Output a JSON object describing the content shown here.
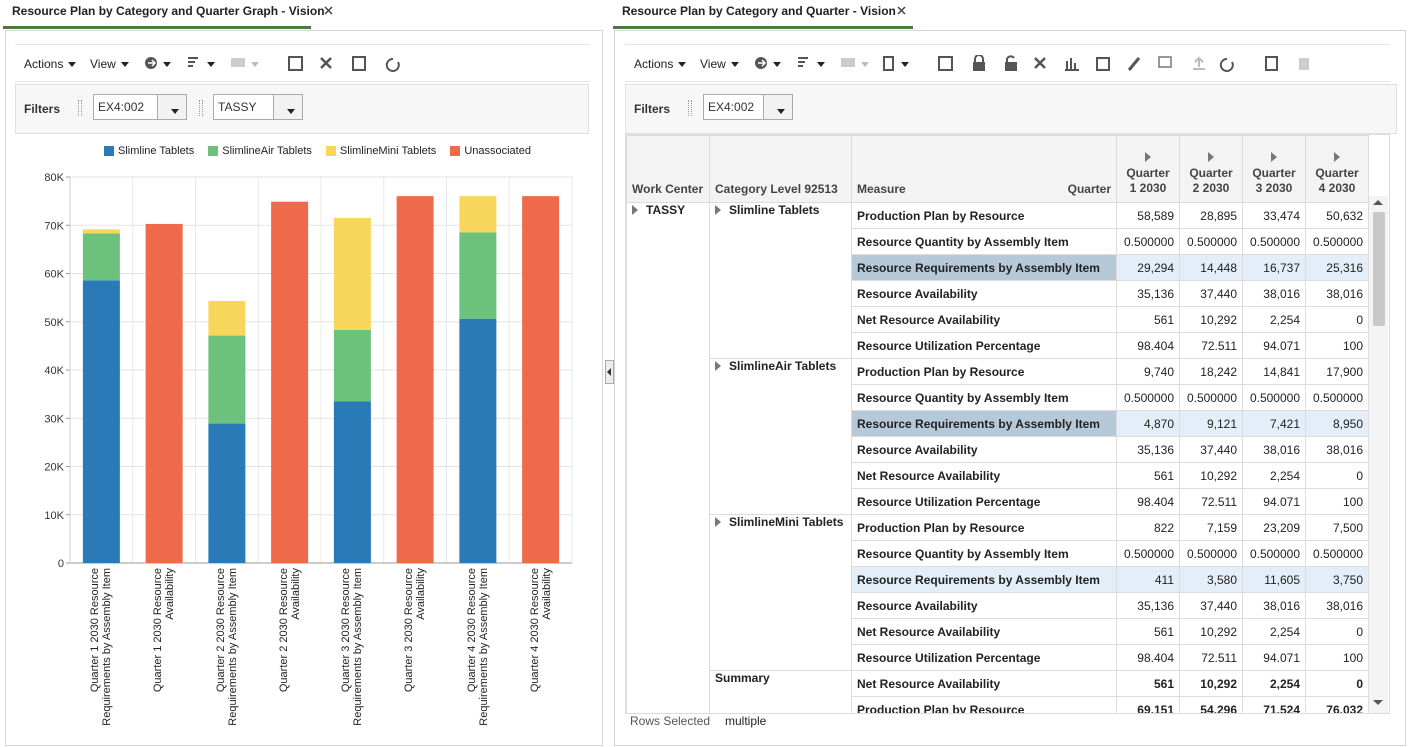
{
  "left_panel": {
    "tab_title": "Resource Plan by Category and Quarter Graph - Vision",
    "toolbar": {
      "actions": "Actions",
      "view": "View"
    },
    "filters": {
      "label": "Filters",
      "values": [
        "EX4:002",
        "TASSY"
      ]
    }
  },
  "chart_data": {
    "type": "bar",
    "stacked": true,
    "categories": [
      "Quarter 1 2030 Resource Requirements by Assembly Item",
      "Quarter 1 2030 Resource Availability",
      "Quarter 2 2030 Resource Requirements by Assembly Item",
      "Quarter 2 2030 Resource Availability",
      "Quarter 3 2030 Resource Requirements by Assembly Item",
      "Quarter 3 2030 Resource Availability",
      "Quarter 4 2030 Resource Requirements by Assembly Item",
      "Quarter 4 2030 Resource Availability"
    ],
    "series": [
      {
        "name": "Slimline Tablets",
        "color": "#2a7ab8",
        "values": [
          58589,
          null,
          28895,
          null,
          33474,
          null,
          50632,
          null
        ]
      },
      {
        "name": "SlimlineAir Tablets",
        "color": "#6cc17d",
        "values": [
          9740,
          null,
          18242,
          null,
          14841,
          null,
          17900,
          null
        ]
      },
      {
        "name": "SlimlineMini Tablets",
        "color": "#f8d55b",
        "values": [
          822,
          null,
          7159,
          null,
          23209,
          null,
          7500,
          null
        ]
      },
      {
        "name": "Unassociated",
        "color": "#ee6a4a",
        "values": [
          null,
          70272,
          null,
          74880,
          null,
          76032,
          null,
          76032
        ]
      }
    ],
    "ylim": [
      0,
      80000
    ],
    "yticks": [
      0,
      {
        "value": 10000,
        "label": "10K"
      },
      {
        "value": 20000,
        "label": "20K"
      },
      {
        "value": 30000,
        "label": "30K"
      },
      {
        "value": 40000,
        "label": "40K"
      },
      {
        "value": 50000,
        "label": "50K"
      },
      {
        "value": 60000,
        "label": "60K"
      },
      {
        "value": 70000,
        "label": "70K"
      },
      {
        "value": 80000,
        "label": "80K"
      }
    ],
    "grid": true,
    "legend": "top"
  },
  "right_panel": {
    "tab_title": "Resource Plan by Category and Quarter - Vision",
    "toolbar": {
      "actions": "Actions",
      "view": "View"
    },
    "filters": {
      "label": "Filters",
      "values": [
        "EX4:002"
      ]
    },
    "table": {
      "headers": {
        "work_center": "Work Center",
        "category": "Category Level 92513",
        "measure": "Measure",
        "quarter": "Quarter",
        "columns": [
          "Quarter 1 2030",
          "Quarter 2 2030",
          "Quarter 3 2030",
          "Quarter 4 2030"
        ]
      },
      "work_center": "TASSY",
      "groups": [
        {
          "category": "Slimline Tablets",
          "rows": [
            {
              "measure": "Production Plan by Resource",
              "values": [
                "58,589",
                "28,895",
                "33,474",
                "50,632"
              ]
            },
            {
              "measure": "Resource Quantity by Assembly Item",
              "values": [
                "0.500000",
                "0.500000",
                "0.500000",
                "0.500000"
              ]
            },
            {
              "measure": "Resource Requirements by Assembly Item",
              "values": [
                "29,294",
                "14,448",
                "16,737",
                "25,316"
              ]
            },
            {
              "measure": "Resource Availability",
              "values": [
                "35,136",
                "37,440",
                "38,016",
                "38,016"
              ]
            },
            {
              "measure": "Net Resource Availability",
              "values": [
                "561",
                "10,292",
                "2,254",
                "0"
              ]
            },
            {
              "measure": "Resource Utilization Percentage",
              "values": [
                "98.404",
                "72.511",
                "94.071",
                "100"
              ]
            }
          ]
        },
        {
          "category": "SlimlineAir Tablets",
          "rows": [
            {
              "measure": "Production Plan by Resource",
              "values": [
                "9,740",
                "18,242",
                "14,841",
                "17,900"
              ]
            },
            {
              "measure": "Resource Quantity by Assembly Item",
              "values": [
                "0.500000",
                "0.500000",
                "0.500000",
                "0.500000"
              ]
            },
            {
              "measure": "Resource Requirements by Assembly Item",
              "values": [
                "4,870",
                "9,121",
                "7,421",
                "8,950"
              ]
            },
            {
              "measure": "Resource Availability",
              "values": [
                "35,136",
                "37,440",
                "38,016",
                "38,016"
              ]
            },
            {
              "measure": "Net Resource Availability",
              "values": [
                "561",
                "10,292",
                "2,254",
                "0"
              ]
            },
            {
              "measure": "Resource Utilization Percentage",
              "values": [
                "98.404",
                "72.511",
                "94.071",
                "100"
              ]
            }
          ]
        },
        {
          "category": "SlimlineMini Tablets",
          "rows": [
            {
              "measure": "Production Plan by Resource",
              "values": [
                "822",
                "7,159",
                "23,209",
                "7,500"
              ]
            },
            {
              "measure": "Resource Quantity by Assembly Item",
              "values": [
                "0.500000",
                "0.500000",
                "0.500000",
                "0.500000"
              ]
            },
            {
              "measure": "Resource Requirements by Assembly Item",
              "values": [
                "411",
                "3,580",
                "11,605",
                "3,750"
              ]
            },
            {
              "measure": "Resource Availability",
              "values": [
                "35,136",
                "37,440",
                "38,016",
                "38,016"
              ]
            },
            {
              "measure": "Net Resource Availability",
              "values": [
                "561",
                "10,292",
                "2,254",
                "0"
              ]
            },
            {
              "measure": "Resource Utilization Percentage",
              "values": [
                "98.404",
                "72.511",
                "94.071",
                "100"
              ]
            }
          ]
        }
      ],
      "summary": {
        "label": "Summary",
        "rows": [
          {
            "measure": "Net Resource Availability",
            "values": [
              "561",
              "10,292",
              "2,254",
              "0"
            ]
          },
          {
            "measure": "Production Plan by Resource",
            "values": [
              "69,151",
              "54,296",
              "71,524",
              "76,032"
            ]
          }
        ]
      }
    },
    "footer": {
      "label": "Rows Selected",
      "value": "multiple"
    }
  }
}
